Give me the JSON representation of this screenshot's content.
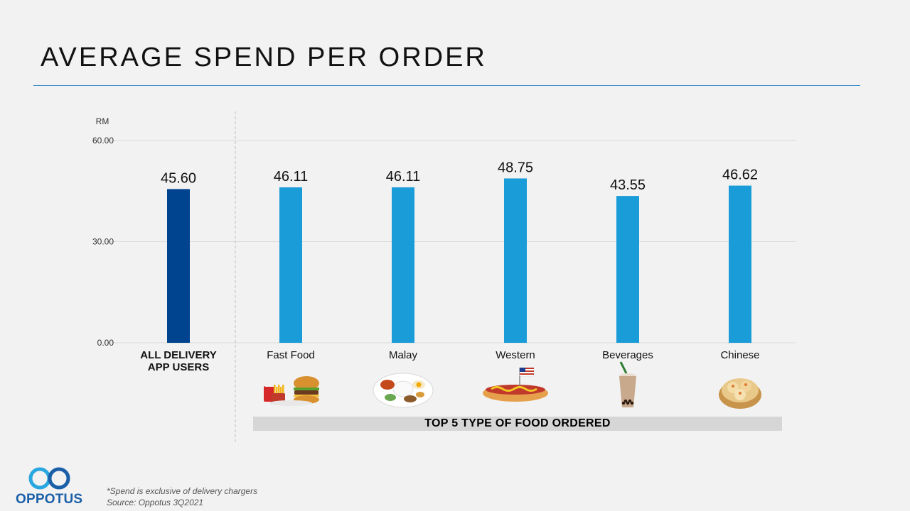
{
  "page": {
    "title": "AVERAGE SPEND PER ORDER",
    "band_label": "TOP 5 TYPE OF FOOD ORDERED",
    "footnote_line1": "*Spend is exclusive  of delivery  chargers",
    "footnote_line2": "Source: Oppotus 3Q2021",
    "logo_text": "OPPOTUS"
  },
  "chart_data": {
    "type": "bar",
    "title": "AVERAGE SPEND PER ORDER",
    "ylabel": "RM",
    "xlabel": "",
    "ylim": [
      0,
      60
    ],
    "yticks": [
      0,
      30,
      60
    ],
    "ytick_labels": [
      "0.00",
      "30.00",
      "60.00"
    ],
    "grid": true,
    "categories": [
      "ALL DELIVERY APP USERS",
      "Fast Food",
      "Malay",
      "Western",
      "Beverages",
      "Chinese"
    ],
    "category_label_lines": [
      [
        "ALL DELIVERY",
        "APP USERS"
      ],
      [
        "Fast Food"
      ],
      [
        "Malay"
      ],
      [
        "Western"
      ],
      [
        "Beverages"
      ],
      [
        "Chinese"
      ]
    ],
    "values": [
      45.6,
      46.11,
      46.11,
      48.75,
      43.55,
      46.62
    ],
    "value_labels": [
      "45.60",
      "46.11",
      "46.11",
      "48.75",
      "43.55",
      "46.62"
    ],
    "food_icons": [
      "",
      "burger-fries-icon",
      "nasi-lemak-plate-icon",
      "hotdog-icon",
      "bubble-tea-icon",
      "dim-sum-icon"
    ]
  },
  "colors": {
    "highlight_bar": "#00438f",
    "bar": "#199cd8",
    "gridline": "#d9d9d9",
    "title_rule": "#3a8fc8",
    "logo": "#1a5fa8",
    "logo_ring": "#2aa7e0"
  }
}
